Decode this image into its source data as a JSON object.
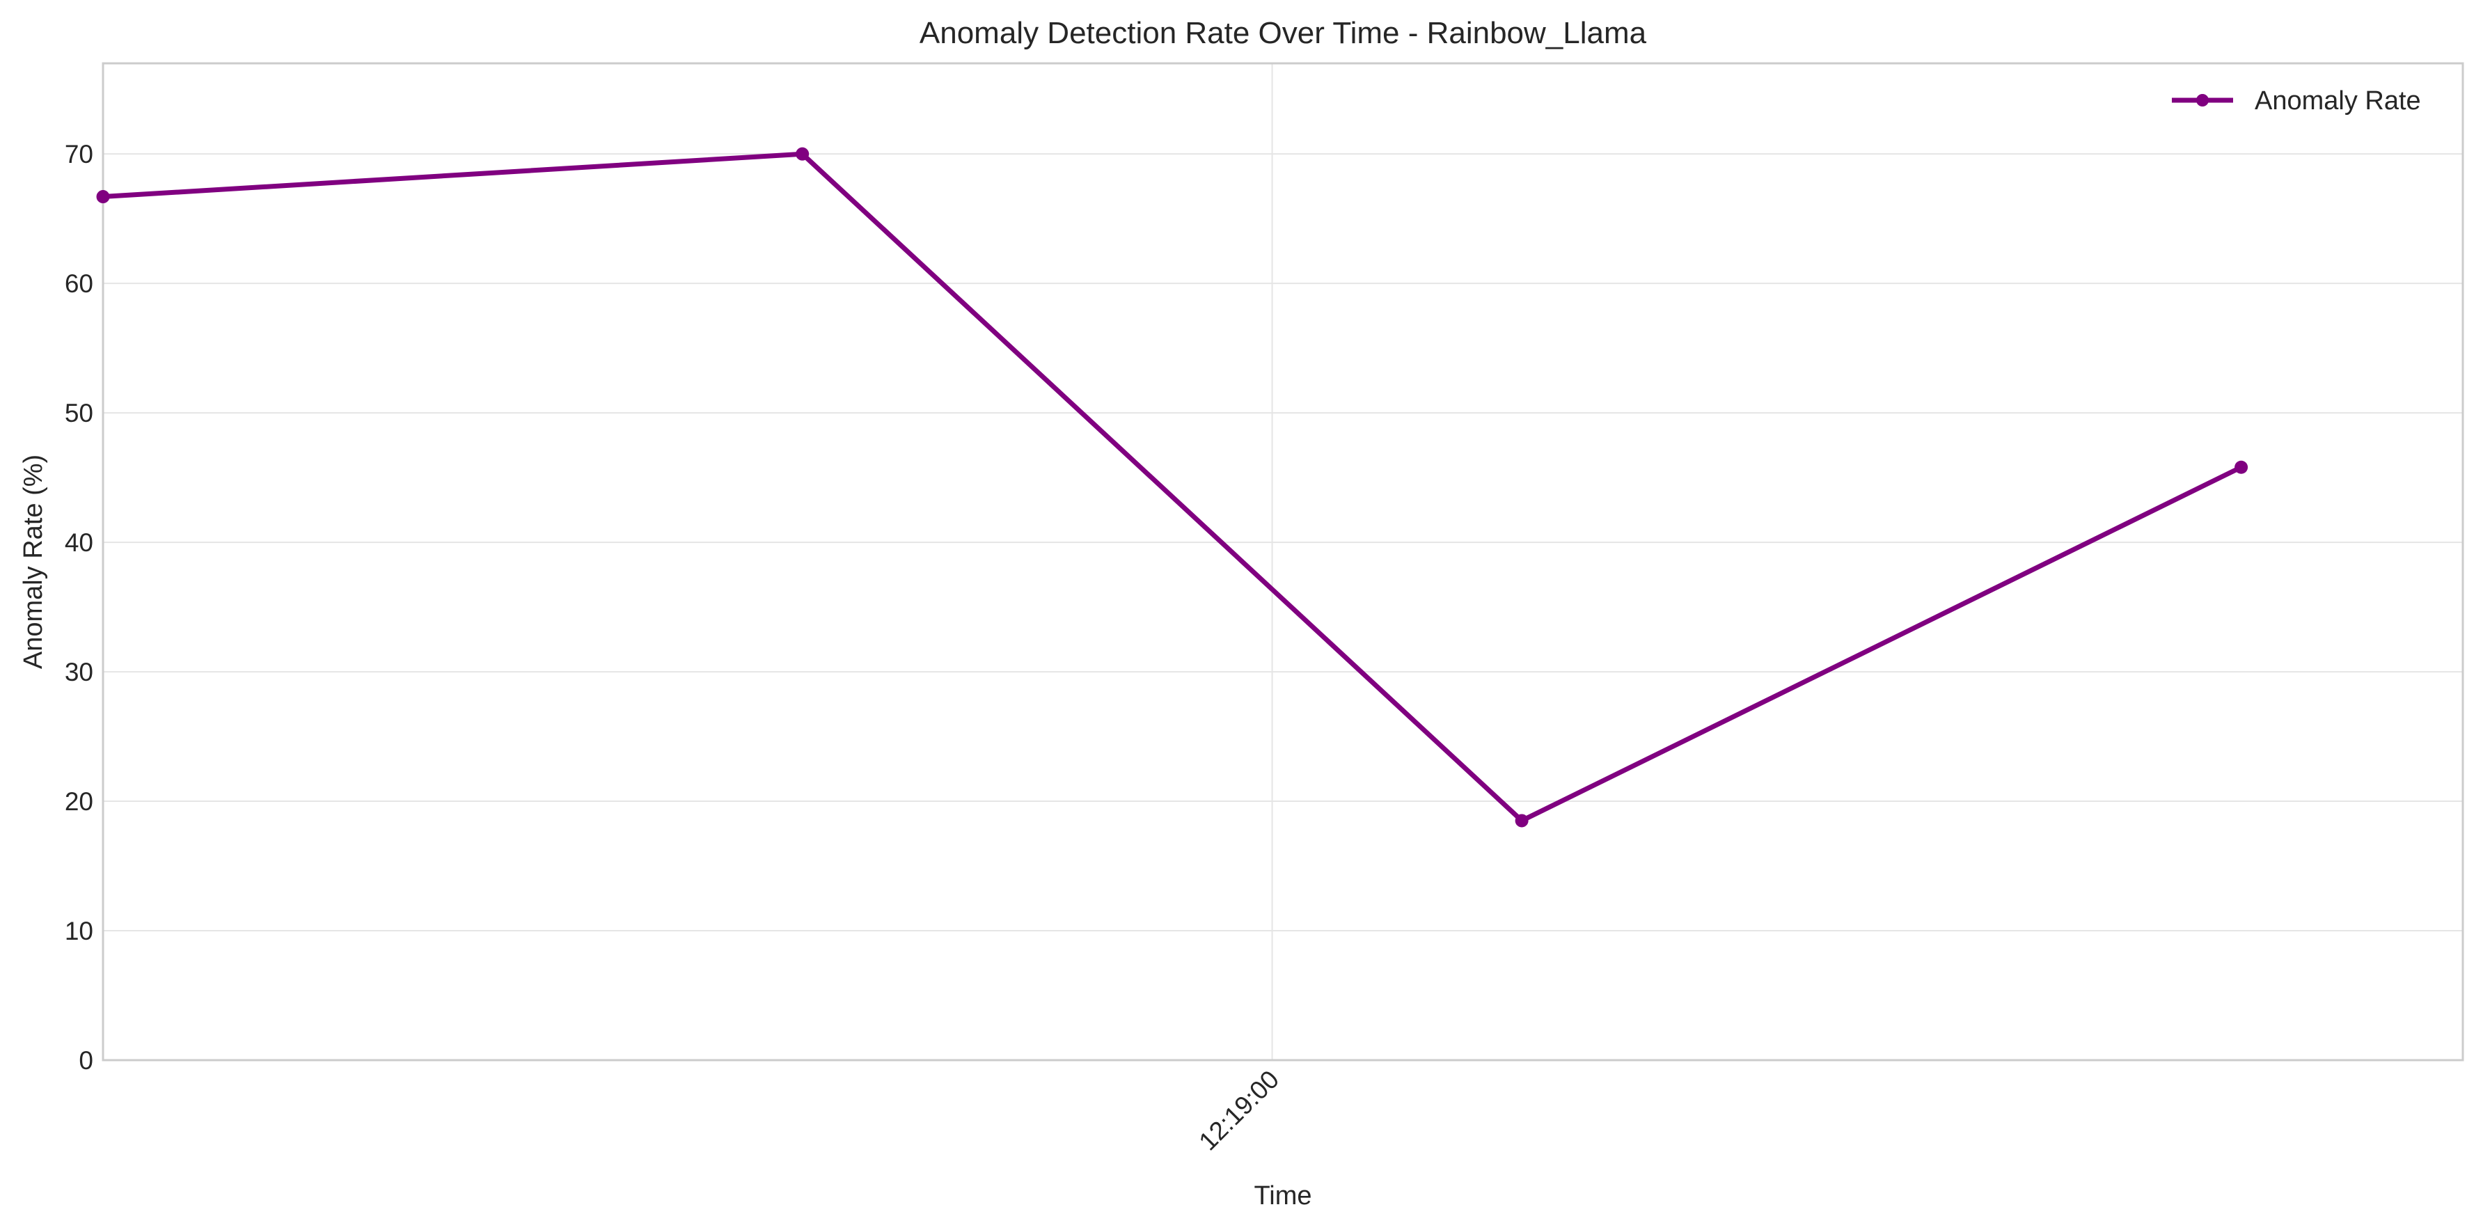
{
  "chart_data": {
    "type": "line",
    "title": "Anomaly Detection Rate Over Time - Rainbow_Llama",
    "xlabel": "Time",
    "ylabel": "Anomaly Rate (%)",
    "ylim": [
      0,
      77
    ],
    "yticks": [
      0,
      10,
      20,
      30,
      40,
      50,
      60,
      70
    ],
    "xlim": [
      0,
      3.29
    ],
    "xticks": [
      {
        "value": 1.63,
        "label": "12:19:00"
      }
    ],
    "grid": true,
    "legend_position": "top-right",
    "series": [
      {
        "name": "Anomaly Rate",
        "color": "#800080",
        "marker": "circle",
        "points": [
          {
            "x": 0,
            "y": 66.7
          },
          {
            "x": 0.975,
            "y": 70.0
          },
          {
            "x": 1.978,
            "y": 18.5
          },
          {
            "x": 2.981,
            "y": 45.8
          }
        ]
      }
    ]
  }
}
